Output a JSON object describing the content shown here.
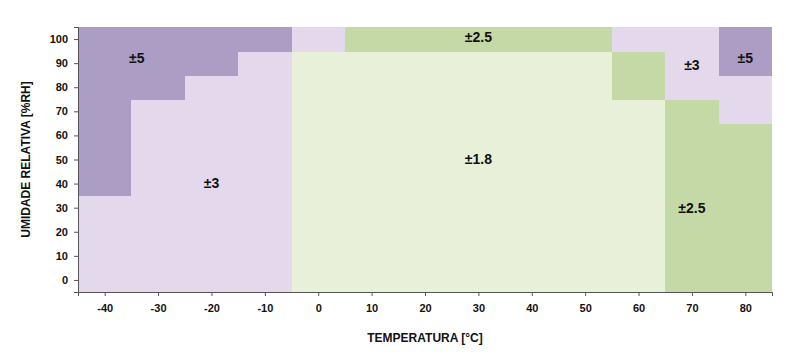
{
  "chart_data": {
    "type": "heatmap",
    "x_label": "TEMPERATURA [°C]",
    "y_label": "UMIDADE RELATIVA [%RH]",
    "x": [
      -40,
      -30,
      -20,
      -10,
      0,
      10,
      20,
      30,
      40,
      50,
      60,
      70,
      80
    ],
    "y": [
      0,
      10,
      20,
      30,
      40,
      50,
      60,
      70,
      80,
      90,
      100
    ],
    "z": [
      [
        3,
        3,
        3,
        3,
        1.8,
        1.8,
        1.8,
        1.8,
        1.8,
        1.8,
        1.8,
        2.5,
        2.5
      ],
      [
        3,
        3,
        3,
        3,
        1.8,
        1.8,
        1.8,
        1.8,
        1.8,
        1.8,
        1.8,
        2.5,
        2.5
      ],
      [
        3,
        3,
        3,
        3,
        1.8,
        1.8,
        1.8,
        1.8,
        1.8,
        1.8,
        1.8,
        2.5,
        2.5
      ],
      [
        3,
        3,
        3,
        3,
        1.8,
        1.8,
        1.8,
        1.8,
        1.8,
        1.8,
        1.8,
        2.5,
        2.5
      ],
      [
        5,
        3,
        3,
        3,
        1.8,
        1.8,
        1.8,
        1.8,
        1.8,
        1.8,
        1.8,
        2.5,
        2.5
      ],
      [
        5,
        3,
        3,
        3,
        1.8,
        1.8,
        1.8,
        1.8,
        1.8,
        1.8,
        1.8,
        2.5,
        2.5
      ],
      [
        5,
        3,
        3,
        3,
        1.8,
        1.8,
        1.8,
        1.8,
        1.8,
        1.8,
        1.8,
        2.5,
        2.5
      ],
      [
        5,
        3,
        3,
        3,
        1.8,
        1.8,
        1.8,
        1.8,
        1.8,
        1.8,
        1.8,
        2.5,
        3
      ],
      [
        5,
        5,
        3,
        3,
        1.8,
        1.8,
        1.8,
        1.8,
        1.8,
        1.8,
        2.5,
        3,
        3
      ],
      [
        5,
        5,
        5,
        3,
        1.8,
        1.8,
        1.8,
        1.8,
        1.8,
        1.8,
        2.5,
        3,
        5
      ],
      [
        5,
        5,
        5,
        5,
        3,
        2.5,
        2.5,
        2.5,
        2.5,
        2.5,
        3,
        3,
        5
      ]
    ],
    "levels": [
      1.8,
      2.5,
      3,
      5
    ],
    "colors": [
      "#e8f0da",
      "#c5d9a6",
      "#e4d8ec",
      "#ab9dc4"
    ],
    "annotations": [
      {
        "text": "±5",
        "x": -34,
        "y": 92
      },
      {
        "text": "±3",
        "x": -20,
        "y": 40
      },
      {
        "text": "±2.5",
        "x": 30,
        "y": 101
      },
      {
        "text": "±1.8",
        "x": 30,
        "y": 50
      },
      {
        "text": "±3",
        "x": 70,
        "y": 89
      },
      {
        "text": "±5",
        "x": 80,
        "y": 92
      },
      {
        "text": "±2.5",
        "x": 70,
        "y": 30
      }
    ],
    "xlim": [
      -45,
      85
    ],
    "ylim": [
      -5,
      105
    ],
    "xticks": [
      -40,
      -30,
      -20,
      -10,
      0,
      10,
      20,
      30,
      40,
      50,
      60,
      70,
      80
    ],
    "yticks": [
      0,
      10,
      20,
      30,
      40,
      50,
      60,
      70,
      80,
      90,
      100
    ],
    "grid": false
  }
}
